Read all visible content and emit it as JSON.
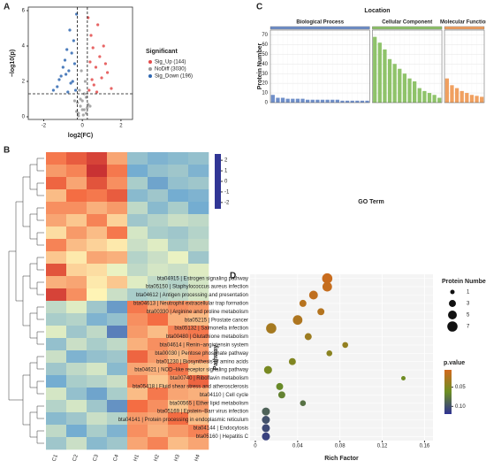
{
  "chart_data": [
    {
      "type": "scatter",
      "label": "A",
      "xlabel": "log2(FC)",
      "ylabel": "−log10(p)",
      "xlim": [
        -2.8,
        2.6
      ],
      "xticks": [
        -2,
        0,
        2
      ],
      "ylim": [
        -0.15,
        6.2
      ],
      "yticks": [
        0,
        2,
        4,
        6
      ],
      "vlines": [
        -0.26,
        0.26
      ],
      "hline": 1.3,
      "legend_title": "Significant",
      "series": [
        {
          "name": "Sig_Up (144)",
          "color": "#e34a4a",
          "x": [
            0.35,
            0.5,
            0.7,
            0.9,
            1.1,
            1.3,
            0.45,
            0.8,
            0.6,
            1.0,
            0.4,
            1.5,
            0.55,
            0.75,
            1.2,
            0.3
          ],
          "y": [
            1.5,
            2.1,
            2.8,
            3.4,
            4.0,
            2.5,
            4.6,
            5.2,
            1.8,
            2.2,
            3.1,
            1.6,
            3.9,
            1.4,
            3.0,
            5.6
          ]
        },
        {
          "name": "NoDiff (3030)",
          "color": "#9a9a9a",
          "x": [
            -0.2,
            -0.1,
            0,
            0.1,
            0.2,
            -0.15,
            0.05,
            0.15,
            -0.05,
            -0.25,
            0.25,
            0.1,
            -0.3,
            0.3,
            0,
            -0.1,
            0.2,
            -0.2,
            0.4,
            -0.4
          ],
          "y": [
            0.2,
            0.6,
            0.9,
            0.4,
            1.1,
            1.5,
            0.1,
            2.0,
            2.6,
            0.8,
            0.5,
            1.3,
            0.3,
            0.7,
            0.4,
            1.0,
            0.2,
            0.05,
            0.6,
            0.9
          ]
        },
        {
          "name": "Sig_Down (196)",
          "color": "#2f67b1",
          "x": [
            -0.35,
            -0.5,
            -0.7,
            -0.9,
            -1.1,
            -1.3,
            -0.45,
            -0.8,
            -0.6,
            -1.0,
            -0.4,
            -1.5,
            -0.55,
            -0.75,
            -1.2,
            -0.65,
            -0.3,
            -0.85
          ],
          "y": [
            1.5,
            2.0,
            2.6,
            3.2,
            2.3,
            1.7,
            4.3,
            3.8,
            1.9,
            2.8,
            3.0,
            1.5,
            3.6,
            1.4,
            2.1,
            4.9,
            5.8,
            2.4
          ]
        }
      ]
    },
    {
      "type": "heatmap",
      "label": "B",
      "columns": [
        "C1",
        "C2",
        "C3",
        "C4",
        "H1",
        "H2",
        "H3",
        "H4"
      ],
      "colorscale": [
        "#313695",
        "#74add1",
        "#ffffbf",
        "#f46d43",
        "#a50026"
      ],
      "zlim": [
        -2.6,
        2.6
      ],
      "zticks": [
        -2,
        -1,
        0,
        1,
        2
      ],
      "rows": [
        [
          1.2,
          1.5,
          1.8,
          0.8,
          -1.0,
          -1.2,
          -1.1,
          -1.0
        ],
        [
          0.9,
          1.1,
          2.0,
          1.2,
          -1.3,
          -1.0,
          -0.9,
          -1.2
        ],
        [
          1.4,
          0.8,
          1.6,
          1.0,
          -0.8,
          -1.4,
          -1.0,
          -0.9
        ],
        [
          0.6,
          1.3,
          1.2,
          1.5,
          -1.1,
          -0.9,
          -1.3,
          -1.2
        ],
        [
          1.0,
          1.0,
          0.7,
          0.9,
          -0.6,
          -1.1,
          -0.8,
          -1.3
        ],
        [
          0.8,
          0.5,
          1.1,
          0.4,
          -0.9,
          -0.7,
          -0.5,
          -0.6
        ],
        [
          0.3,
          0.9,
          0.6,
          1.2,
          -0.4,
          -0.8,
          -0.9,
          -0.7
        ],
        [
          1.1,
          0.6,
          0.4,
          0.2,
          -0.5,
          -0.3,
          -0.8,
          -0.6
        ],
        [
          0.5,
          0.2,
          0.8,
          0.7,
          -0.7,
          -0.5,
          -0.2,
          -0.9
        ],
        [
          1.6,
          0.4,
          0.3,
          -0.2,
          -0.6,
          -0.4,
          -0.5,
          -0.3
        ],
        [
          0.7,
          0.8,
          0.2,
          0.5,
          -0.3,
          -0.6,
          -0.7,
          -0.4
        ],
        [
          1.8,
          1.0,
          0.1,
          -0.5,
          -0.8,
          -0.7,
          -0.6,
          -0.4
        ],
        [
          -0.6,
          -0.3,
          -0.9,
          -1.5,
          1.2,
          0.8,
          1.0,
          0.9
        ],
        [
          -0.8,
          -0.7,
          -1.2,
          -1.0,
          1.0,
          1.3,
          0.7,
          0.6
        ],
        [
          -0.3,
          -0.9,
          -0.6,
          -1.8,
          0.9,
          0.6,
          1.1,
          1.2
        ],
        [
          -1.0,
          -0.5,
          -0.8,
          -0.6,
          0.7,
          1.0,
          0.8,
          0.9
        ],
        [
          -0.5,
          -1.2,
          -1.0,
          -0.9,
          1.4,
          0.9,
          0.6,
          1.0
        ],
        [
          -0.9,
          -0.6,
          -0.4,
          -1.1,
          0.8,
          0.7,
          1.2,
          0.5
        ],
        [
          -1.3,
          -0.8,
          -0.7,
          -0.5,
          1.1,
          0.5,
          0.9,
          1.4
        ],
        [
          -0.4,
          -1.0,
          -1.4,
          -0.8,
          0.6,
          1.2,
          0.8,
          0.7
        ],
        [
          -0.7,
          -0.4,
          -0.9,
          -1.6,
          1.3,
          1.0,
          0.5,
          0.9
        ],
        [
          -1.1,
          -0.9,
          -0.5,
          -0.7,
          0.9,
          0.8,
          1.3,
          0.6
        ],
        [
          -0.6,
          -1.3,
          -0.8,
          -1.2,
          1.0,
          0.7,
          0.9,
          1.1
        ],
        [
          -0.9,
          -0.5,
          -1.1,
          -0.9,
          0.8,
          1.1,
          0.6,
          0.8
        ]
      ]
    },
    {
      "type": "bar",
      "label": "C",
      "title": "Location",
      "ylabel": "Protein Number",
      "xlabel": "GO Term",
      "ylim": [
        0,
        75
      ],
      "yticks": [
        0,
        10,
        20,
        30,
        40,
        50,
        60,
        70
      ],
      "grid": true,
      "groups": [
        {
          "name": "Biological Process",
          "color": "#6f8fc9",
          "values": [
            8,
            5,
            5,
            4,
            4,
            4,
            4,
            3,
            3,
            3,
            3,
            3,
            3,
            3,
            2,
            2,
            2,
            2,
            2,
            2
          ]
        },
        {
          "name": "Cellular Component",
          "color": "#8fc36a",
          "values": [
            68,
            62,
            55,
            45,
            40,
            35,
            30,
            25,
            22,
            15,
            12,
            10,
            8,
            5
          ]
        },
        {
          "name": "Molecular Function",
          "color": "#f0a060",
          "values": [
            25,
            18,
            15,
            12,
            10,
            8,
            7,
            6
          ]
        }
      ]
    },
    {
      "type": "bubble",
      "label": "D",
      "xlabel": "Rich Factor",
      "ylabel": "Pathway",
      "xlim": [
        -0.005,
        0.168
      ],
      "xticks": [
        0,
        0.04,
        0.08,
        0.12,
        0.16
      ],
      "categories": [
        "bta04915 | Estrogen signaling pathway",
        "bta05150 | Staphylococcus aureus infection",
        "bta04612 | Antigen processing and presentation",
        "bta04613 | Neutrophil extracellular trap formation",
        "bta00330 | Arginine and proline metabolism",
        "bta05215 | Prostate cancer",
        "bta05132 | Salmonella infection",
        "bta00480 | Glutathione metabolism",
        "bta04614 | Renin−angiotensin system",
        "bta00030 | Pentose phosphate pathway",
        "bta01230 | Biosynthesis of amino acids",
        "bta04621 | NOD−like receptor signaling pathway",
        "bta00740 | Riboflavin metabolism",
        "bta05418 | Fluid shear stress and atherosclerosis",
        "bta04110 | Cell cycle",
        "bta00565 | Ether lipid metabolism",
        "bta05169 | Epstein−Barr virus infection",
        "bta04141 | Protein processing in endoplasmic reticulum",
        "bta04144 | Endocytosis",
        "bta05160 | Hepatitis C"
      ],
      "values": [
        0.068,
        0.068,
        0.055,
        0.045,
        0.062,
        0.04,
        0.015,
        0.05,
        0.085,
        0.07,
        0.035,
        0.012,
        0.14,
        0.023,
        0.025,
        0.045,
        0.01,
        0.01,
        0.01,
        0.01
      ],
      "sizes": [
        7,
        6,
        5,
        3,
        3,
        6,
        7,
        3,
        2,
        2,
        3,
        4,
        1,
        3,
        3,
        2,
        4,
        4,
        4,
        4
      ],
      "pvalues": [
        0.01,
        0.012,
        0.015,
        0.02,
        0.022,
        0.025,
        0.03,
        0.035,
        0.04,
        0.045,
        0.05,
        0.055,
        0.06,
        0.065,
        0.07,
        0.08,
        0.09,
        0.1,
        0.105,
        0.11
      ],
      "size_title": "Protein Number",
      "size_ticks": [
        1,
        3,
        5,
        7
      ],
      "color_title": "p.value",
      "colorscale": [
        "#d2691e",
        "#6b8e23",
        "#2e3192"
      ],
      "clim": [
        0.005,
        0.12
      ],
      "cticks": [
        0.05,
        {
          "value": 0.1,
          "label": "0.10"
        }
      ]
    }
  ]
}
